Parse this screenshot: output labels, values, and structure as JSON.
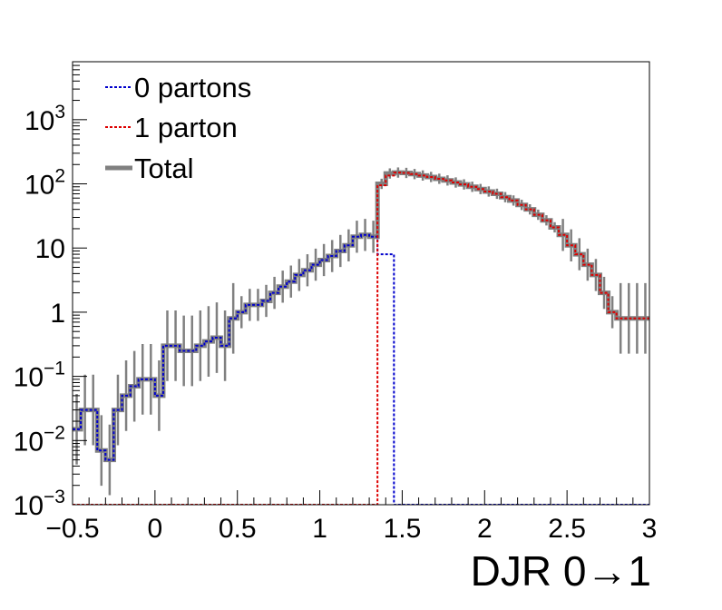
{
  "chart_data": {
    "type": "line",
    "xlabel": "DJR 0→1",
    "ylabel": "",
    "xlim": [
      -0.5,
      3.0
    ],
    "ylim": [
      0.001,
      8000
    ],
    "ylog": true,
    "grid": false,
    "legend_position": "top-left",
    "bin_width": 0.05,
    "x_start": -0.5,
    "x_ticks": [
      {
        "value": -0.5,
        "label": "−0.5"
      },
      {
        "value": 0,
        "label": "0"
      },
      {
        "value": 0.5,
        "label": "0.5"
      },
      {
        "value": 1,
        "label": "1"
      },
      {
        "value": 1.5,
        "label": "1.5"
      },
      {
        "value": 2,
        "label": "2"
      },
      {
        "value": 2.5,
        "label": "2.5"
      },
      {
        "value": 3,
        "label": "3"
      }
    ],
    "y_ticks": [
      {
        "value": 0.001,
        "base": "10",
        "exp": "−3"
      },
      {
        "value": 0.01,
        "base": "10",
        "exp": "−2"
      },
      {
        "value": 0.1,
        "base": "10",
        "exp": "−1"
      },
      {
        "value": 1,
        "base": "1",
        "exp": ""
      },
      {
        "value": 10,
        "base": "10",
        "exp": ""
      },
      {
        "value": 100,
        "base": "10",
        "exp": "2"
      },
      {
        "value": 1000,
        "base": "10",
        "exp": "3"
      }
    ],
    "series": [
      {
        "name": "0 partons",
        "color": "#0000cc",
        "style": "dotted",
        "values": [
          0.015,
          0.03,
          0.03,
          0.007,
          0.005,
          0.03,
          0.05,
          0.07,
          0.09,
          0.09,
          0.05,
          0.3,
          0.3,
          0.25,
          0.25,
          0.3,
          0.35,
          0.4,
          0.3,
          0.8,
          1.0,
          1.3,
          1.3,
          1.5,
          2.0,
          2.5,
          3.0,
          3.8,
          4.5,
          5.5,
          6.5,
          7.5,
          9.0,
          11.0,
          15.0,
          16.0,
          15.0,
          8.0,
          8.0,
          0.001,
          0.001,
          0.001,
          0.001,
          0.001,
          0.001,
          0.001,
          0.001,
          0.001,
          0.001,
          0.001,
          0.001,
          0.001,
          0.001,
          0.001,
          0.001,
          0.001,
          0.001,
          0.001,
          0.001,
          0.001,
          0.001,
          0.001,
          0.001,
          0.001,
          0.001,
          0.001,
          0.001,
          0.001,
          0.001,
          0.001
        ]
      },
      {
        "name": "1 parton",
        "color": "#dd0000",
        "style": "dotted",
        "values": [
          0.001,
          0.001,
          0.001,
          0.001,
          0.001,
          0.001,
          0.001,
          0.001,
          0.001,
          0.001,
          0.001,
          0.001,
          0.001,
          0.001,
          0.001,
          0.001,
          0.001,
          0.001,
          0.001,
          0.001,
          0.001,
          0.001,
          0.001,
          0.001,
          0.001,
          0.001,
          0.001,
          0.001,
          0.001,
          0.001,
          0.001,
          0.001,
          0.001,
          0.001,
          0.001,
          0.001,
          0.001,
          95,
          135,
          150,
          148,
          142,
          135,
          128,
          120,
          113,
          105,
          98,
          90,
          83,
          76,
          70,
          62,
          55,
          47,
          40,
          33,
          27,
          21,
          16,
          11,
          8,
          5.5,
          3.8,
          2.0,
          1.0,
          0.8,
          0.8,
          0.8,
          0.8
        ]
      },
      {
        "name": "Total",
        "color": "#808080",
        "style": "solid",
        "values": [
          0.015,
          0.03,
          0.03,
          0.007,
          0.005,
          0.03,
          0.05,
          0.07,
          0.09,
          0.09,
          0.05,
          0.3,
          0.3,
          0.25,
          0.25,
          0.3,
          0.35,
          0.4,
          0.3,
          0.8,
          1.0,
          1.3,
          1.3,
          1.5,
          2.0,
          2.5,
          3.0,
          3.8,
          4.5,
          5.5,
          6.5,
          7.5,
          9.0,
          11.0,
          15.0,
          16.0,
          15.0,
          100,
          145,
          150,
          148,
          142,
          135,
          128,
          120,
          113,
          105,
          98,
          90,
          83,
          76,
          70,
          62,
          55,
          47,
          40,
          33,
          27,
          21,
          16,
          11,
          8,
          5.5,
          3.8,
          2.0,
          1.0,
          0.8,
          0.8,
          0.8,
          0.8
        ]
      }
    ]
  }
}
